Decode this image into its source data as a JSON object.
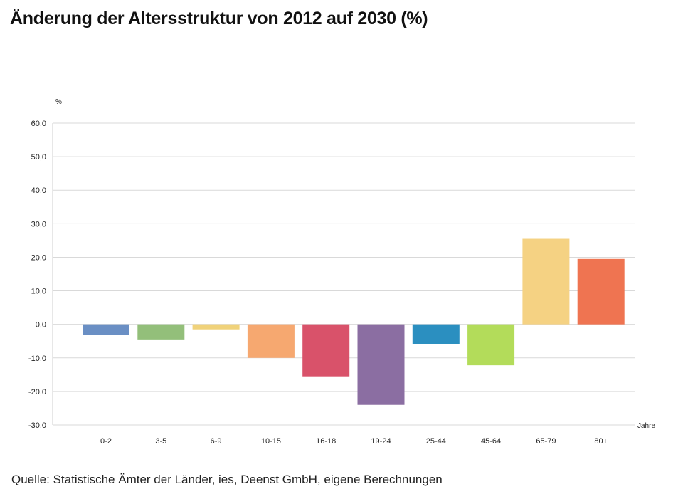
{
  "title": "Änderung der Altersstruktur von 2012 auf 2030 (%)",
  "source": "Quelle: Statistische Ämter der Länder, ies, Deenst GmbH, eigene Berechnungen",
  "chart_data": {
    "type": "bar",
    "title": "Änderung der Altersstruktur von 2012 auf 2030 (%)",
    "ylabel": "%",
    "xlabel": "Jahre",
    "ylim": [
      -30,
      60
    ],
    "ytick_step": 10,
    "ytick_labels": [
      "60,0",
      "50,0",
      "40,0",
      "30,0",
      "20,0",
      "10,0",
      "0,0",
      "-10,0",
      "-20,0",
      "-30,0"
    ],
    "grid": true,
    "legend": "none",
    "categories": [
      "0-2",
      "3-5",
      "6-9",
      "10-15",
      "16-18",
      "19-24",
      "25-44",
      "45-64",
      "65-79",
      "80+"
    ],
    "values": [
      -3.2,
      -4.5,
      -1.5,
      -10.0,
      -15.5,
      -24.0,
      -5.8,
      -12.2,
      25.5,
      19.5
    ],
    "colors": [
      "#6a8fc4",
      "#93bf7a",
      "#f0d27a",
      "#f6a870",
      "#d9526a",
      "#8b6ea2",
      "#2b8fc0",
      "#b3dc5a",
      "#f5d283",
      "#ef7451"
    ]
  }
}
